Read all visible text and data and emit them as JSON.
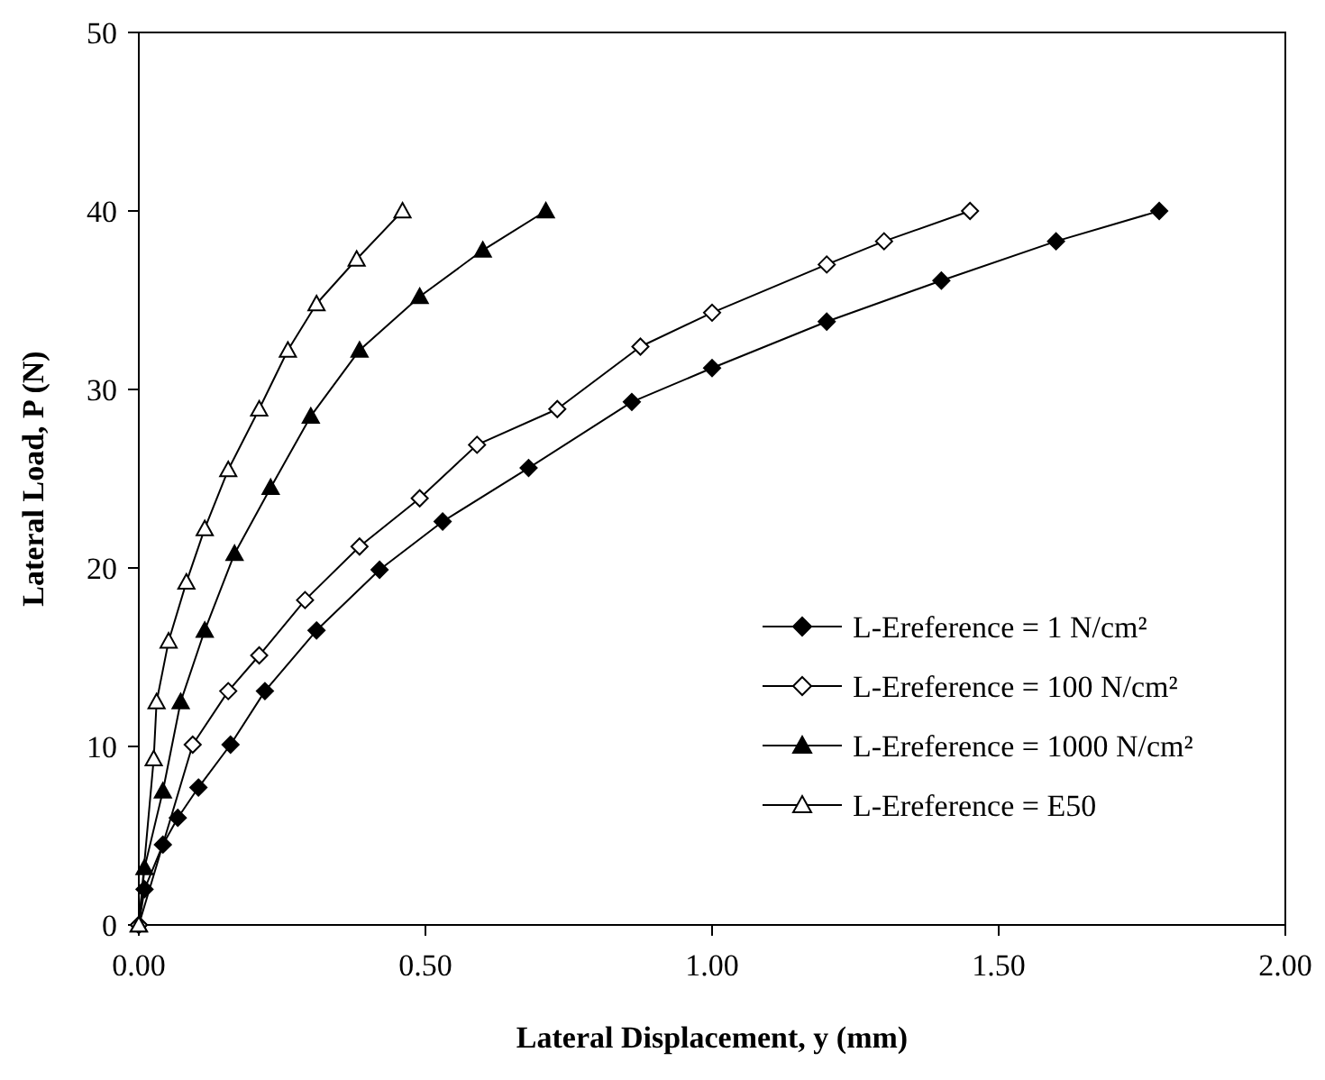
{
  "chart_data": {
    "type": "line",
    "xlabel": "Lateral Displacement, y (mm)",
    "ylabel": "Lateral Load, P (N)",
    "xlim": [
      0,
      2
    ],
    "xticks": [
      {
        "value": 0,
        "label": "0.00"
      },
      {
        "value": 0.5,
        "label": "0.50"
      },
      {
        "value": 1,
        "label": "1.00"
      },
      {
        "value": 1.5,
        "label": "1.50"
      },
      {
        "value": 2,
        "label": "2.00"
      }
    ],
    "ylim": [
      0,
      50
    ],
    "yticks": [
      0,
      10,
      20,
      30,
      40,
      50
    ],
    "grid": false,
    "legend": "bottom right",
    "line_style": "solid",
    "series": [
      {
        "name": "L-Ereference = 1 N/cm²",
        "color": "#000000",
        "marker": "diamond",
        "x": [
          0,
          0.01,
          0.042,
          0.068,
          0.104,
          0.16,
          0.22,
          0.31,
          0.42,
          0.53,
          0.68,
          0.86,
          1.0,
          1.2,
          1.4,
          1.6,
          1.78
        ],
        "values": [
          0,
          2,
          4.5,
          6,
          7.7,
          10.1,
          13.1,
          16.5,
          19.9,
          22.6,
          25.6,
          29.3,
          31.2,
          33.8,
          36.1,
          38.3,
          40
        ]
      },
      {
        "name": "L-Ereference = 100 N/cm²",
        "color": "#000000",
        "marker": "diamond",
        "x": [
          0,
          0.094,
          0.156,
          0.21,
          0.29,
          0.385,
          0.49,
          0.59,
          0.73,
          0.875,
          1.0,
          1.2,
          1.3,
          1.45
        ],
        "values": [
          0,
          10.1,
          13.1,
          15.1,
          18.2,
          21.2,
          23.9,
          26.9,
          28.9,
          32.4,
          34.3,
          37,
          38.3,
          40
        ]
      },
      {
        "name": "L-Ereference = 1000 N/cm²",
        "color": "#000000",
        "marker": "triangle",
        "x": [
          0,
          0.01,
          0.042,
          0.073,
          0.115,
          0.167,
          0.23,
          0.3,
          0.385,
          0.49,
          0.6,
          0.71
        ],
        "values": [
          0,
          3.2,
          7.5,
          12.5,
          16.5,
          20.8,
          24.5,
          28.5,
          32.2,
          35.2,
          37.8,
          40
        ]
      },
      {
        "name": "L-Ereference = E50",
        "color": "#000000",
        "marker": "triangle",
        "x": [
          0,
          0.026,
          0.031,
          0.052,
          0.083,
          0.115,
          0.156,
          0.21,
          0.26,
          0.31,
          0.38,
          0.46
        ],
        "values": [
          0,
          9.3,
          12.5,
          15.9,
          19.2,
          22.2,
          25.5,
          28.9,
          32.2,
          34.8,
          37.3,
          40
        ]
      }
    ]
  }
}
